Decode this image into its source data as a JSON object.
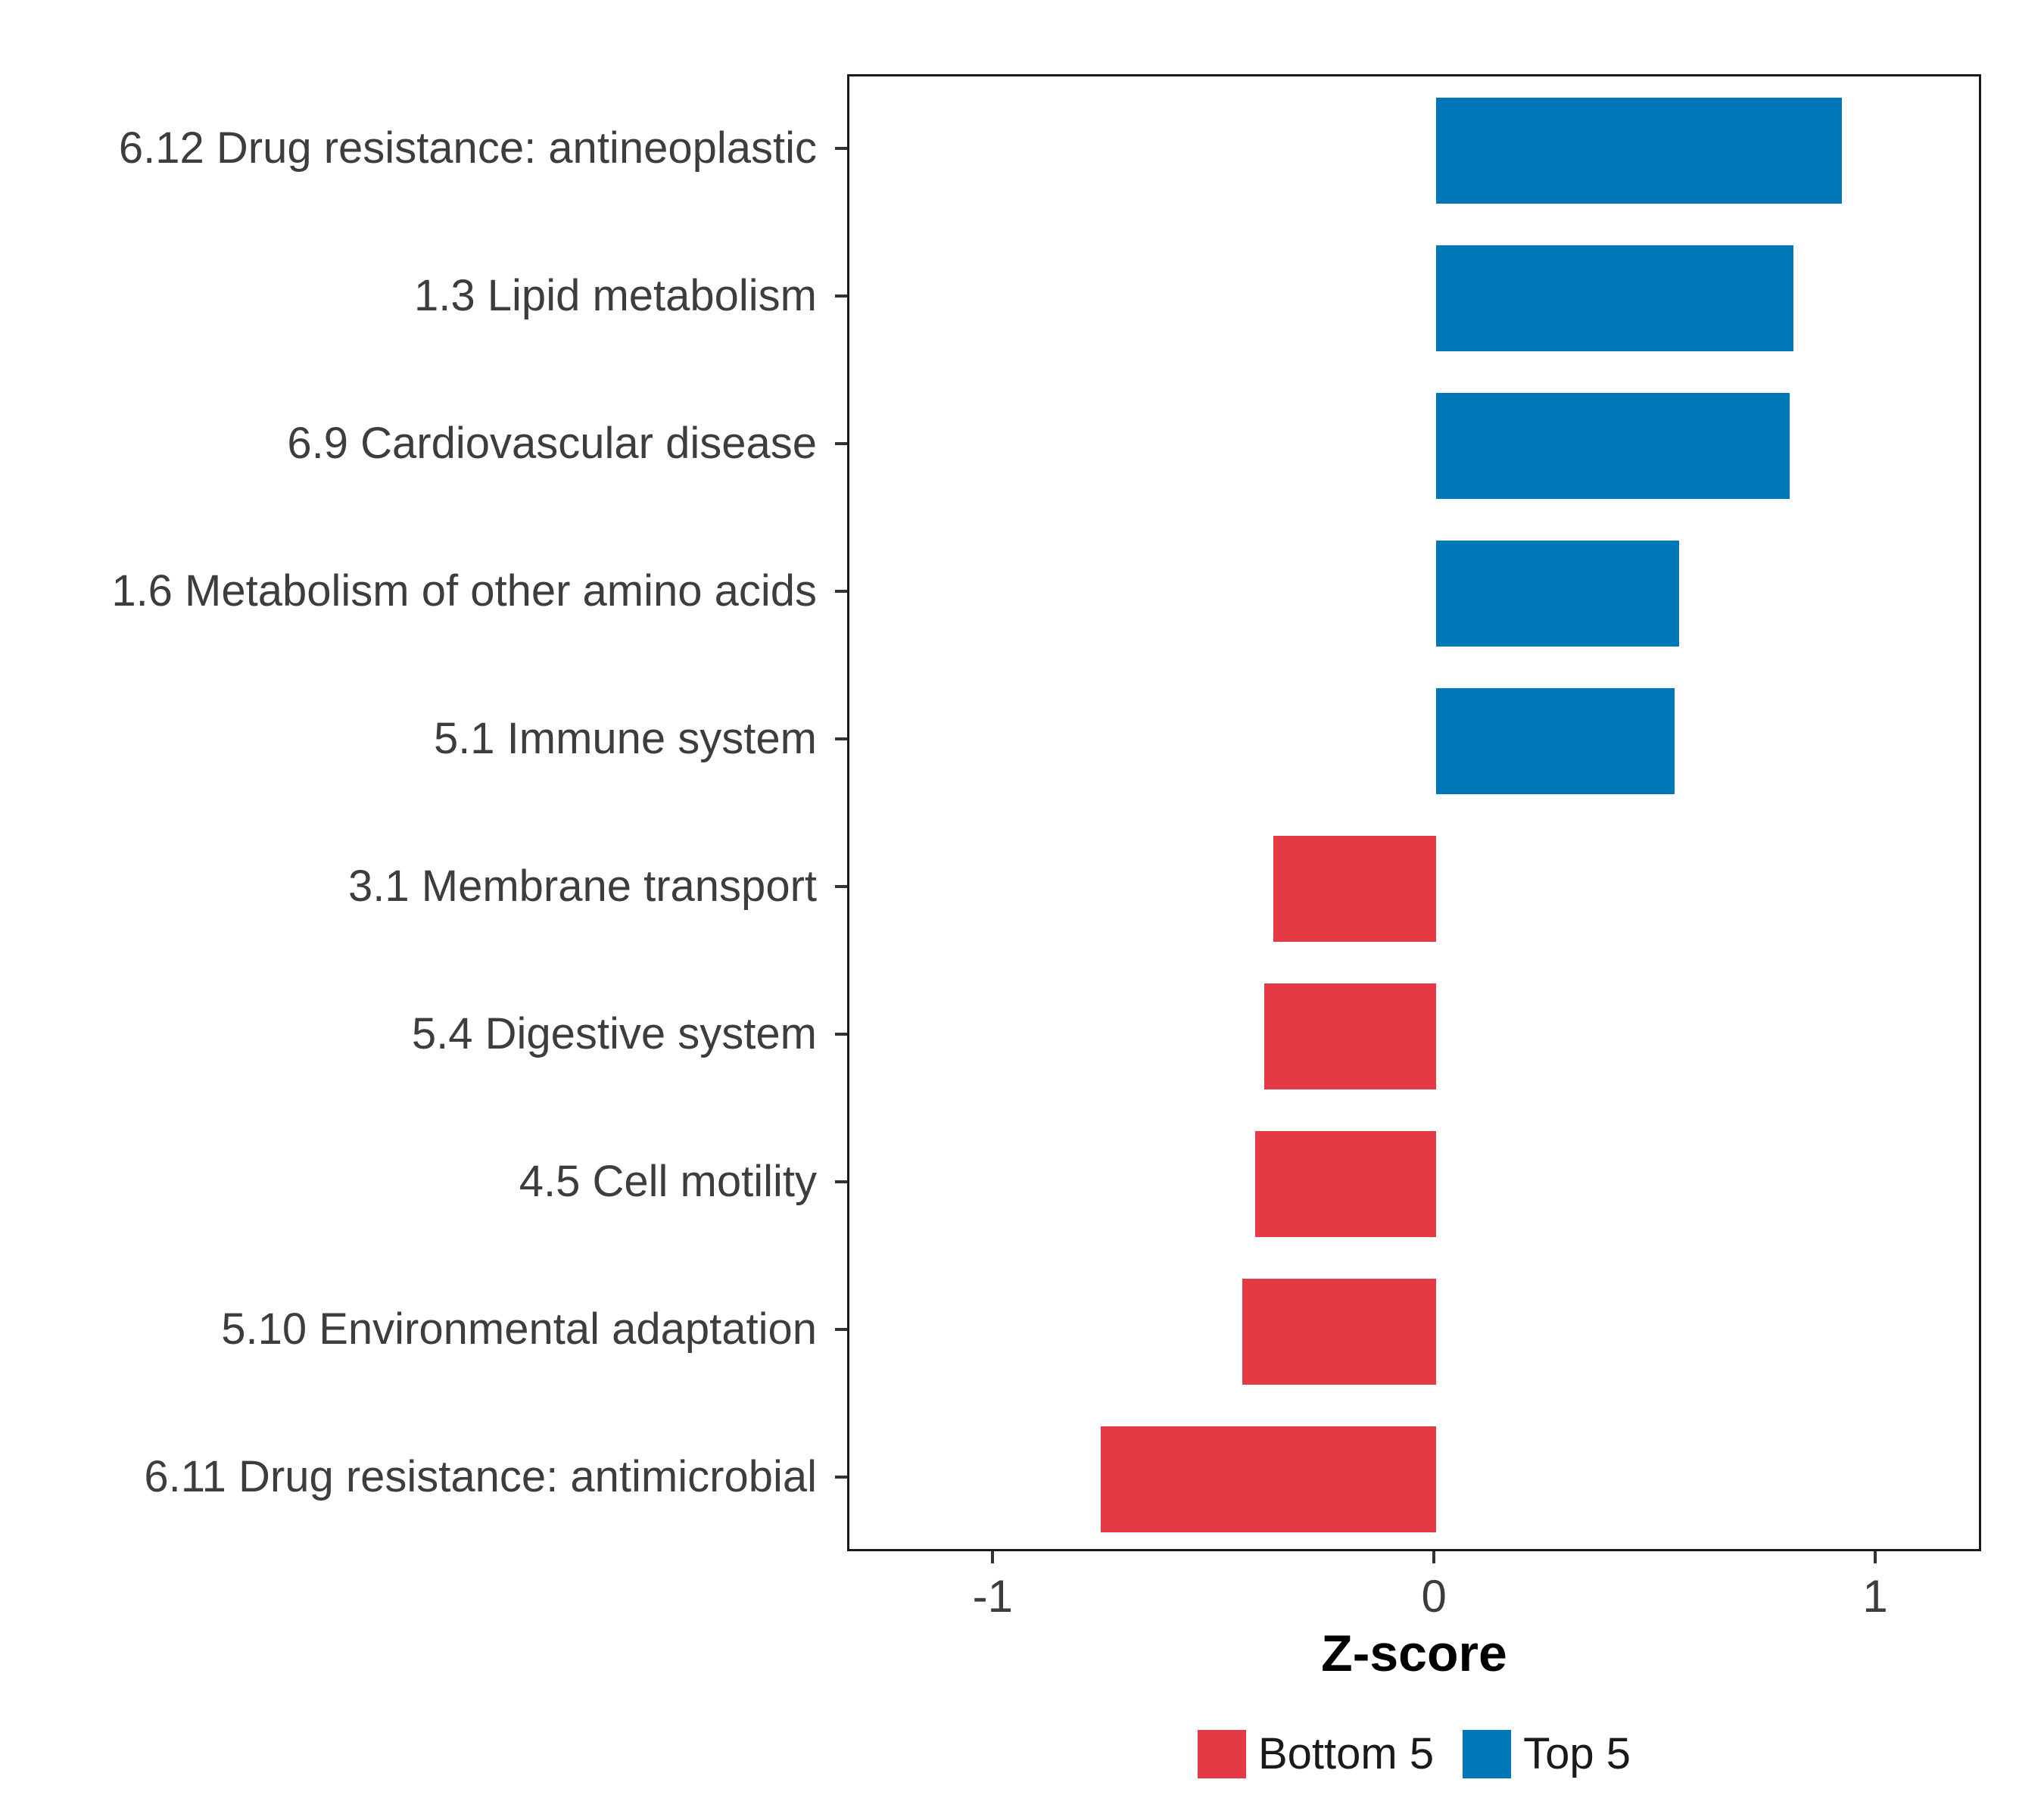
{
  "chart_data": {
    "type": "bar",
    "orientation": "horizontal",
    "title": "",
    "xlabel": "Z-score",
    "ylabel": "",
    "xlim": [
      -1.33,
      1.24
    ],
    "x_ticks": [
      -1,
      0,
      1
    ],
    "x_tick_labels": [
      "-1",
      "0",
      "1"
    ],
    "grid": "off",
    "legend_position": "bottom",
    "categories": [
      "6.12 Drug resistance: antineoplastic",
      "1.3 Lipid metabolism",
      "6.9 Cardiovascular disease",
      "1.6 Metabolism of other amino acids",
      "5.1 Immune system",
      "3.1 Membrane transport",
      "5.4 Digestive system",
      "4.5 Cell motility",
      "5.10 Environmental adaptation",
      "6.11 Drug resistance: antimicrobial"
    ],
    "values": [
      0.92,
      0.81,
      0.8,
      0.55,
      0.54,
      -0.37,
      -0.39,
      -0.41,
      -0.44,
      -0.76
    ],
    "groups": [
      "Top 5",
      "Top 5",
      "Top 5",
      "Top 5",
      "Top 5",
      "Bottom 5",
      "Bottom 5",
      "Bottom 5",
      "Bottom 5",
      "Bottom 5"
    ],
    "colors": {
      "Bottom 5": "#e63946",
      "Top 5": "#0077b6"
    },
    "legend": {
      "entries": [
        {
          "label": "Bottom 5",
          "color": "#e63946"
        },
        {
          "label": "Top 5",
          "color": "#0077b6"
        }
      ]
    }
  }
}
